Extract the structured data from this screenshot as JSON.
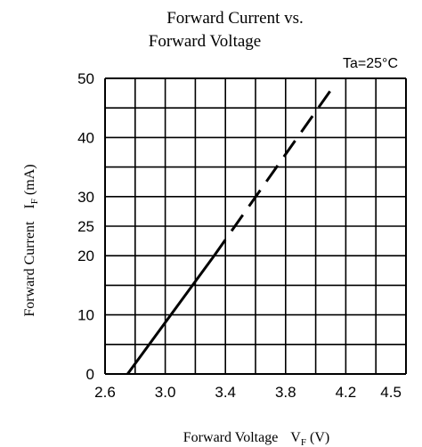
{
  "chart_data": {
    "type": "line",
    "title_line1": "Forward Current vs.",
    "title_line2": "Forward Voltage",
    "annotation": "Ta=25°C",
    "ylabel": "Forward Current",
    "ylabel_symbol": "I",
    "ylabel_subscript": "F",
    "ylabel_unit": "(mA)",
    "xlabel": "Forward Voltage",
    "xlabel_symbol": "V",
    "xlabel_subscript": "F",
    "xlabel_unit": "(V)",
    "x_ticks": [
      "2.6",
      "3.0",
      "3.4",
      "3.8",
      "4.2",
      "4.5"
    ],
    "y_ticks": [
      "0",
      "10",
      "20",
      "25",
      "30",
      "40",
      "50"
    ],
    "xlim": [
      2.6,
      4.6
    ],
    "ylim": [
      0,
      50
    ],
    "grid": true,
    "series": [
      {
        "style": "solid",
        "points": [
          [
            2.75,
            0
          ],
          [
            3.325,
            20
          ]
        ]
      },
      {
        "style": "dashed",
        "points": [
          [
            3.325,
            20
          ],
          [
            4.1,
            48
          ]
        ]
      }
    ],
    "line_color": "#000000",
    "grid_color": "#000000"
  }
}
